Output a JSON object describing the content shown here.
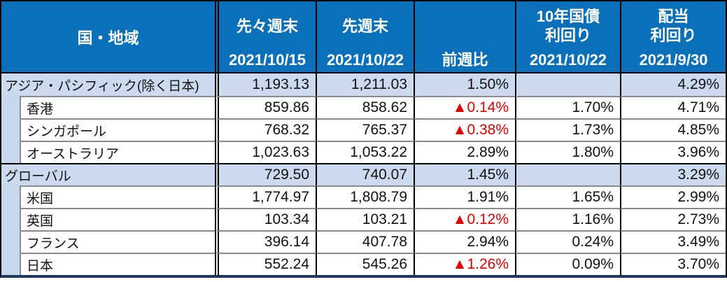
{
  "table": {
    "header": {
      "region_label": "国・地域",
      "columns": [
        {
          "lines": [
            "先々週末"
          ],
          "date": "2021/10/15"
        },
        {
          "lines": [
            "先週末"
          ],
          "date": "2021/10/22"
        },
        {
          "lines": [],
          "date": "前週比"
        },
        {
          "lines": [
            "10年国債",
            "利回り"
          ],
          "date": "2021/10/22"
        },
        {
          "lines": [
            "配当",
            "利回り"
          ],
          "date": "2021/9/30"
        }
      ]
    },
    "rows": [
      {
        "type": "summary",
        "region": "アジア・パシフィック(除く日本)",
        "prev2": "1,193.13",
        "prev": "1,211.03",
        "wow": "1.50%",
        "wow_negative": false,
        "bond10y": "",
        "dividend": "4.29%"
      },
      {
        "type": "sub",
        "region": "香港",
        "prev2": "859.86",
        "prev": "858.62",
        "wow": "▲0.14%",
        "wow_negative": true,
        "bond10y": "1.70%",
        "dividend": "4.71%"
      },
      {
        "type": "sub",
        "region": "シンガポール",
        "prev2": "768.32",
        "prev": "765.37",
        "wow": "▲0.38%",
        "wow_negative": true,
        "bond10y": "1.73%",
        "dividend": "4.85%"
      },
      {
        "type": "sub",
        "region": "オーストラリア",
        "prev2": "1,023.63",
        "prev": "1,053.22",
        "wow": "2.89%",
        "wow_negative": false,
        "bond10y": "1.80%",
        "dividend": "3.96%"
      },
      {
        "type": "summary",
        "region": "グローバル",
        "prev2": "729.50",
        "prev": "740.07",
        "wow": "1.45%",
        "wow_negative": false,
        "bond10y": "",
        "dividend": "3.29%"
      },
      {
        "type": "sub",
        "region": "米国",
        "prev2": "1,774.97",
        "prev": "1,808.79",
        "wow": "1.91%",
        "wow_negative": false,
        "bond10y": "1.65%",
        "dividend": "2.99%"
      },
      {
        "type": "sub",
        "region": "英国",
        "prev2": "103.34",
        "prev": "103.21",
        "wow": "▲0.12%",
        "wow_negative": true,
        "bond10y": "1.16%",
        "dividend": "2.73%"
      },
      {
        "type": "sub",
        "region": "フランス",
        "prev2": "396.14",
        "prev": "407.78",
        "wow": "2.94%",
        "wow_negative": false,
        "bond10y": "0.24%",
        "dividend": "3.49%"
      },
      {
        "type": "sub",
        "region": "日本",
        "prev2": "552.24",
        "prev": "545.26",
        "wow": "▲1.26%",
        "wow_negative": true,
        "bond10y": "0.09%",
        "dividend": "3.70%"
      }
    ]
  },
  "chart_data": {
    "type": "table",
    "negative_marker": "▲",
    "columns": [
      "国・地域",
      "先々週末 2021/10/15",
      "先週末 2021/10/22",
      "前週比",
      "10年国債利回り 2021/10/22",
      "配当利回り 2021/9/30"
    ],
    "rows": [
      {
        "region": "アジア・パシフィック(除く日本)",
        "group": true,
        "prev2_close": 1193.13,
        "prev_close": 1211.03,
        "wow_pct": 1.5,
        "bond10y_pct": null,
        "dividend_pct": 4.29
      },
      {
        "region": "香港",
        "group": false,
        "prev2_close": 859.86,
        "prev_close": 858.62,
        "wow_pct": -0.14,
        "bond10y_pct": 1.7,
        "dividend_pct": 4.71
      },
      {
        "region": "シンガポール",
        "group": false,
        "prev2_close": 768.32,
        "prev_close": 765.37,
        "wow_pct": -0.38,
        "bond10y_pct": 1.73,
        "dividend_pct": 4.85
      },
      {
        "region": "オーストラリア",
        "group": false,
        "prev2_close": 1023.63,
        "prev_close": 1053.22,
        "wow_pct": 2.89,
        "bond10y_pct": 1.8,
        "dividend_pct": 3.96
      },
      {
        "region": "グローバル",
        "group": true,
        "prev2_close": 729.5,
        "prev_close": 740.07,
        "wow_pct": 1.45,
        "bond10y_pct": null,
        "dividend_pct": 3.29
      },
      {
        "region": "米国",
        "group": false,
        "prev2_close": 1774.97,
        "prev_close": 1808.79,
        "wow_pct": 1.91,
        "bond10y_pct": 1.65,
        "dividend_pct": 2.99
      },
      {
        "region": "英国",
        "group": false,
        "prev2_close": 103.34,
        "prev_close": 103.21,
        "wow_pct": -0.12,
        "bond10y_pct": 1.16,
        "dividend_pct": 2.73
      },
      {
        "region": "フランス",
        "group": false,
        "prev2_close": 396.14,
        "prev_close": 407.78,
        "wow_pct": 2.94,
        "bond10y_pct": 0.24,
        "dividend_pct": 3.49
      },
      {
        "region": "日本",
        "group": false,
        "prev2_close": 552.24,
        "prev_close": 545.26,
        "wow_pct": -1.26,
        "bond10y_pct": 0.09,
        "dividend_pct": 3.7
      }
    ]
  },
  "colors": {
    "header_bg": "#0B70BA",
    "header_text": "#FFFFFF",
    "summary_row_bg": "#CBDAEE",
    "indent_strip_bg": "#C7D7EE",
    "negative_text": "#E10000",
    "grid_black": "#000000",
    "grid_gray": "#8C8C8C",
    "bottom_border": "#1F3864"
  }
}
